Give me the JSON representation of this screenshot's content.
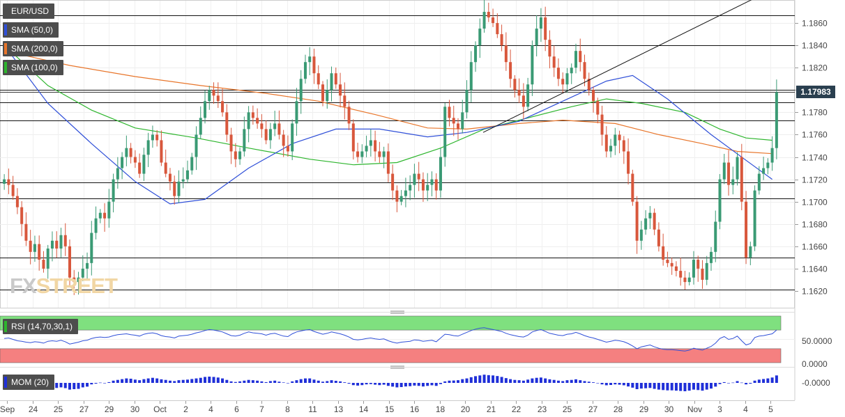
{
  "instrument": "EUR/USD",
  "indicators": {
    "sma50": {
      "label": "SMA (50,0)",
      "color": "#2f4fd8"
    },
    "sma200": {
      "label": "SMA (200,0)",
      "color": "#e8752a"
    },
    "sma100": {
      "label": "SMA (100,0)",
      "color": "#2db52d"
    },
    "rsi": {
      "label": "RSI (14,70,30,1)",
      "levels": [
        "50.0000",
        "0.0000"
      ],
      "line_color": "#2f4fd8",
      "overbought_color": "#7fe07f",
      "oversold_color": "#f58080"
    },
    "mom": {
      "label": "MOM (20)",
      "level": "-0.0000",
      "bar_color": "#1f2fd8"
    }
  },
  "watermark": {
    "part1": "FX",
    "part2": "STREET"
  },
  "colors": {
    "bull": "#3a9a74",
    "bear": "#d8573c",
    "last_price_box": "#2a3f4f"
  },
  "chart_data": {
    "type": "candlestick",
    "title": "EUR/USD",
    "y_ticks": [
      "1.1620",
      "1.1640",
      "1.1660",
      "1.1680",
      "1.1700",
      "1.1720",
      "1.1740",
      "1.1760",
      "1.1780",
      "1.1800",
      "1.1820",
      "1.1840",
      "1.1860"
    ],
    "ylim": [
      1.1605,
      1.188
    ],
    "last_price": "1.17983",
    "x_ticks": [
      "Sep",
      "24",
      "25",
      "27",
      "29",
      "30",
      "Oct",
      "2",
      "4",
      "6",
      "7",
      "8",
      "11",
      "13",
      "14",
      "15",
      "16",
      "18",
      "20",
      "21",
      "22",
      "23",
      "25",
      "27",
      "28",
      "29",
      "30",
      "Nov",
      "3",
      "4",
      "5"
    ],
    "horizontal_levels": [
      1.1867,
      1.184,
      1.18,
      1.1789,
      1.1773,
      1.1717,
      1.1703,
      1.165,
      1.1621
    ],
    "trendline": {
      "from": [
        20,
        1.1762
      ],
      "to": [
        29.7,
        1.19
      ]
    },
    "close": [
      1.172,
      1.1715,
      1.1705,
      1.1695,
      1.168,
      1.1665,
      1.1655,
      1.1662,
      1.1648,
      1.164,
      1.1658,
      1.1665,
      1.1658,
      1.167,
      1.166,
      1.1632,
      1.1628,
      1.1632,
      1.164,
      1.1645,
      1.1672,
      1.1685,
      1.169,
      1.1685,
      1.17,
      1.172,
      1.173,
      1.174,
      1.1748,
      1.174,
      1.1735,
      1.1725,
      1.1742,
      1.1755,
      1.176,
      1.1755,
      1.1735,
      1.1725,
      1.1718,
      1.1705,
      1.1718,
      1.172,
      1.1728,
      1.174,
      1.176,
      1.1775,
      1.179,
      1.18,
      1.1795,
      1.179,
      1.178,
      1.176,
      1.1745,
      1.1738,
      1.1745,
      1.1765,
      1.178,
      1.1775,
      1.177,
      1.1765,
      1.1755,
      1.1765,
      1.177,
      1.176,
      1.175,
      1.1745,
      1.177,
      1.179,
      1.181,
      1.1825,
      1.183,
      1.1815,
      1.1805,
      1.179,
      1.18,
      1.1815,
      1.1805,
      1.1795,
      1.1785,
      1.177,
      1.1745,
      1.174,
      1.1745,
      1.175,
      1.1755,
      1.1745,
      1.174,
      1.1745,
      1.1725,
      1.171,
      1.17,
      1.1705,
      1.171,
      1.1715,
      1.1725,
      1.172,
      1.171,
      1.1715,
      1.172,
      1.171,
      1.174,
      1.1785,
      1.1775,
      1.177,
      1.1765,
      1.178,
      1.18,
      1.1825,
      1.184,
      1.1855,
      1.187,
      1.1865,
      1.186,
      1.185,
      1.184,
      1.1825,
      1.181,
      1.18,
      1.1795,
      1.1785,
      1.1805,
      1.184,
      1.1855,
      1.1865,
      1.1845,
      1.183,
      1.182,
      1.181,
      1.1805,
      1.1815,
      1.182,
      1.1835,
      1.1825,
      1.181,
      1.18,
      1.179,
      1.1778,
      1.176,
      1.1745,
      1.175,
      1.176,
      1.1755,
      1.1745,
      1.1725,
      1.17,
      1.1665,
      1.1675,
      1.1685,
      1.169,
      1.1675,
      1.166,
      1.1648,
      1.1645,
      1.1642,
      1.1638,
      1.1632,
      1.1628,
      1.1632,
      1.1648,
      1.164,
      1.163,
      1.1645,
      1.1655,
      1.1682,
      1.172,
      1.1735,
      1.1715,
      1.172,
      1.174,
      1.17,
      1.165,
      1.166,
      1.171,
      1.1725,
      1.173,
      1.1735,
      1.1748,
      1.1798
    ],
    "sma50": [
      [
        0,
        1.184
      ],
      [
        10,
        1.1788
      ],
      [
        20,
        1.1752
      ],
      [
        30,
        1.1718
      ],
      [
        38,
        1.1698
      ],
      [
        46,
        1.1702
      ],
      [
        56,
        1.173
      ],
      [
        66,
        1.1752
      ],
      [
        76,
        1.1765
      ],
      [
        86,
        1.1765
      ],
      [
        97,
        1.1758
      ],
      [
        106,
        1.1762
      ],
      [
        118,
        1.1772
      ],
      [
        128,
        1.179
      ],
      [
        138,
        1.1808
      ],
      [
        144,
        1.1813
      ],
      [
        152,
        1.1792
      ],
      [
        162,
        1.176
      ],
      [
        170,
        1.1737
      ],
      [
        176,
        1.172
      ]
    ],
    "sma100": [
      [
        0,
        1.184
      ],
      [
        10,
        1.1804
      ],
      [
        20,
        1.1782
      ],
      [
        30,
        1.1766
      ],
      [
        44,
        1.1757
      ],
      [
        56,
        1.1748
      ],
      [
        70,
        1.1738
      ],
      [
        80,
        1.1733
      ],
      [
        90,
        1.1735
      ],
      [
        100,
        1.1748
      ],
      [
        110,
        1.1765
      ],
      [
        120,
        1.1775
      ],
      [
        130,
        1.1785
      ],
      [
        138,
        1.1792
      ],
      [
        146,
        1.1788
      ],
      [
        156,
        1.178
      ],
      [
        164,
        1.1765
      ],
      [
        170,
        1.1757
      ],
      [
        176,
        1.1755
      ]
    ],
    "sma200": [
      [
        0,
        1.1835
      ],
      [
        15,
        1.1822
      ],
      [
        30,
        1.1812
      ],
      [
        45,
        1.1804
      ],
      [
        60,
        1.1797
      ],
      [
        72,
        1.179
      ],
      [
        85,
        1.1778
      ],
      [
        97,
        1.1766
      ],
      [
        106,
        1.1765
      ],
      [
        118,
        1.177
      ],
      [
        128,
        1.1773
      ],
      [
        140,
        1.177
      ],
      [
        150,
        1.176
      ],
      [
        160,
        1.1752
      ],
      [
        168,
        1.1745
      ],
      [
        176,
        1.1743
      ]
    ],
    "rsi": [
      52,
      53,
      50,
      47,
      46,
      44,
      43,
      45,
      44,
      42,
      46,
      47,
      46,
      48,
      45,
      40,
      42,
      44,
      47,
      48,
      52,
      54,
      55,
      54,
      55,
      58,
      60,
      61,
      62,
      60,
      59,
      57,
      61,
      63,
      64,
      62,
      58,
      56,
      55,
      53,
      57,
      58,
      59,
      61,
      64,
      66,
      69,
      71,
      70,
      68,
      66,
      62,
      58,
      57,
      59,
      63,
      66,
      64,
      63,
      62,
      59,
      62,
      63,
      60,
      57,
      56,
      62,
      66,
      68,
      70,
      71,
      67,
      64,
      61,
      63,
      66,
      64,
      62,
      59,
      55,
      50,
      49,
      50,
      52,
      53,
      51,
      50,
      51,
      47,
      44,
      42,
      44,
      45,
      46,
      49,
      48,
      46,
      47,
      48,
      45,
      53,
      61,
      60,
      58,
      57,
      61,
      65,
      69,
      72,
      74,
      75,
      73,
      71,
      69,
      67,
      63,
      60,
      58,
      56,
      55,
      59,
      66,
      69,
      71,
      67,
      63,
      61,
      59,
      58,
      61,
      62,
      65,
      62,
      58,
      55,
      53,
      50,
      47,
      44,
      46,
      48,
      47,
      45,
      41,
      36,
      30,
      34,
      36,
      38,
      34,
      31,
      29,
      28,
      28,
      27,
      26,
      25,
      27,
      31,
      29,
      27,
      31,
      35,
      42,
      52,
      56,
      50,
      52,
      57,
      47,
      38,
      41,
      54,
      57,
      58,
      60,
      62,
      70
    ],
    "mom": [
      -0.0008,
      -0.0012,
      -0.001,
      -0.0015,
      -0.002,
      -0.0025,
      -0.003,
      -0.0028,
      -0.0032,
      -0.004,
      -0.003,
      -0.0028,
      -0.0034,
      -0.003,
      -0.0035,
      -0.0045,
      -0.0042,
      -0.004,
      -0.003,
      -0.0025,
      -0.001,
      -0.0005,
      0.0002,
      0.0,
      0.0005,
      0.0015,
      0.002,
      0.0025,
      0.003,
      0.0028,
      0.0022,
      0.0018,
      0.0025,
      0.003,
      0.0034,
      0.003,
      0.0024,
      0.002,
      0.0015,
      0.0012,
      0.0018,
      0.002,
      0.0022,
      0.0026,
      0.003,
      0.0034,
      0.004,
      0.0042,
      0.004,
      0.0036,
      0.003,
      0.002,
      0.001,
      0.0006,
      0.001,
      0.0015,
      0.002,
      0.0018,
      0.0015,
      0.001,
      0.0005,
      0.0012,
      0.0015,
      0.0008,
      0.0003,
      0.0,
      0.001,
      0.0018,
      0.0025,
      0.003,
      0.003,
      0.0022,
      0.0015,
      0.0008,
      0.0012,
      0.0018,
      0.0014,
      0.001,
      0.0004,
      -0.0005,
      -0.0015,
      -0.0018,
      -0.0015,
      -0.001,
      -0.0008,
      -0.0012,
      -0.0015,
      -0.0012,
      -0.002,
      -0.0025,
      -0.003,
      -0.0028,
      -0.0024,
      -0.0022,
      -0.0018,
      -0.002,
      -0.0024,
      -0.002,
      -0.0016,
      -0.002,
      -0.0008,
      0.001,
      0.0015,
      0.0016,
      0.0018,
      0.0025,
      0.003,
      0.0038,
      0.0045,
      0.005,
      0.0055,
      0.0052,
      0.005,
      0.0046,
      0.004,
      0.0032,
      0.0025,
      0.002,
      0.0018,
      0.0015,
      0.0022,
      0.003,
      0.0034,
      0.0036,
      0.003,
      0.0024,
      0.002,
      0.0015,
      0.0012,
      0.0018,
      0.002,
      0.0024,
      0.0018,
      0.0012,
      0.0008,
      0.0004,
      -0.0002,
      -0.001,
      -0.0016,
      -0.0014,
      -0.001,
      -0.0012,
      -0.0016,
      -0.0024,
      -0.0032,
      -0.0042,
      -0.0038,
      -0.0036,
      -0.0034,
      -0.004,
      -0.0045,
      -0.0048,
      -0.005,
      -0.005,
      -0.0052,
      -0.0054,
      -0.0056,
      -0.0052,
      -0.0045,
      -0.0048,
      -0.0052,
      -0.0045,
      -0.0038,
      -0.0025,
      -0.0008,
      0.0005,
      -0.0002,
      0.0002,
      0.0012,
      0.0002,
      -0.001,
      -0.0005,
      0.0015,
      0.0022,
      0.0026,
      0.003,
      0.0036,
      0.005
    ]
  }
}
